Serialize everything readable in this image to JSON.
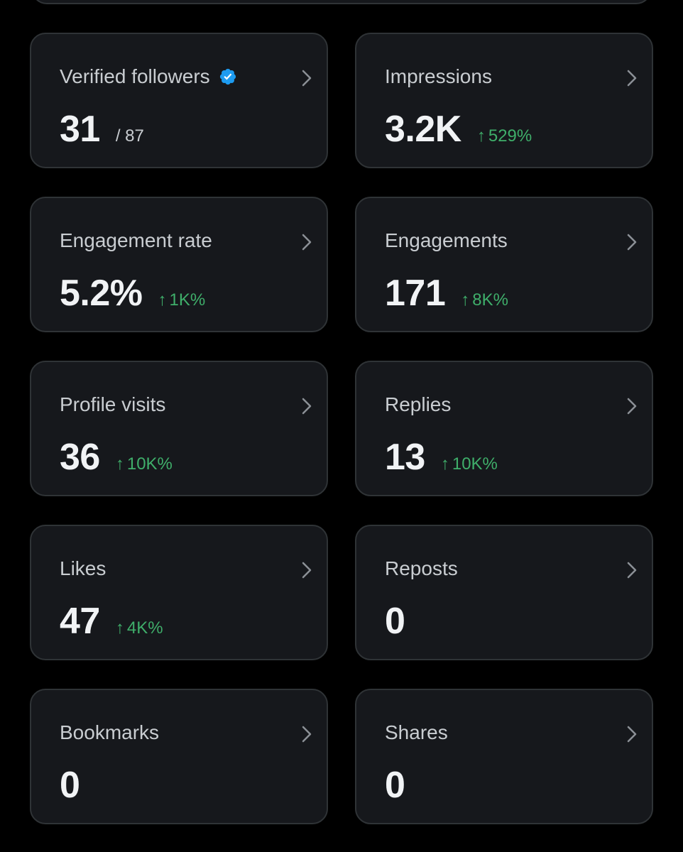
{
  "colors": {
    "background": "#000000",
    "card": "#16181c",
    "card_border": "#2f3336",
    "title": "#c9cdd1",
    "value": "#f1f3f5",
    "positive": "#3fae6a",
    "verified_badge": "#1d9bf0"
  },
  "metrics": [
    {
      "label": "Verified followers",
      "value": "31",
      "subtotal": "/ 87",
      "delta": "",
      "badge": "verified-badge-icon"
    },
    {
      "label": "Impressions",
      "value": "3.2K",
      "subtotal": "",
      "delta": "529%"
    },
    {
      "label": "Engagement rate",
      "value": "5.2%",
      "subtotal": "",
      "delta": "1K%"
    },
    {
      "label": "Engagements",
      "value": "171",
      "subtotal": "",
      "delta": "8K%"
    },
    {
      "label": "Profile visits",
      "value": "36",
      "subtotal": "",
      "delta": "10K%"
    },
    {
      "label": "Replies",
      "value": "13",
      "subtotal": "",
      "delta": "10K%"
    },
    {
      "label": "Likes",
      "value": "47",
      "subtotal": "",
      "delta": "4K%"
    },
    {
      "label": "Reposts",
      "value": "0",
      "subtotal": "",
      "delta": ""
    },
    {
      "label": "Bookmarks",
      "value": "0",
      "subtotal": "",
      "delta": ""
    },
    {
      "label": "Shares",
      "value": "0",
      "subtotal": "",
      "delta": ""
    }
  ],
  "icons": {
    "delta_arrow": "↑",
    "chevron": "chevron-right-icon"
  }
}
